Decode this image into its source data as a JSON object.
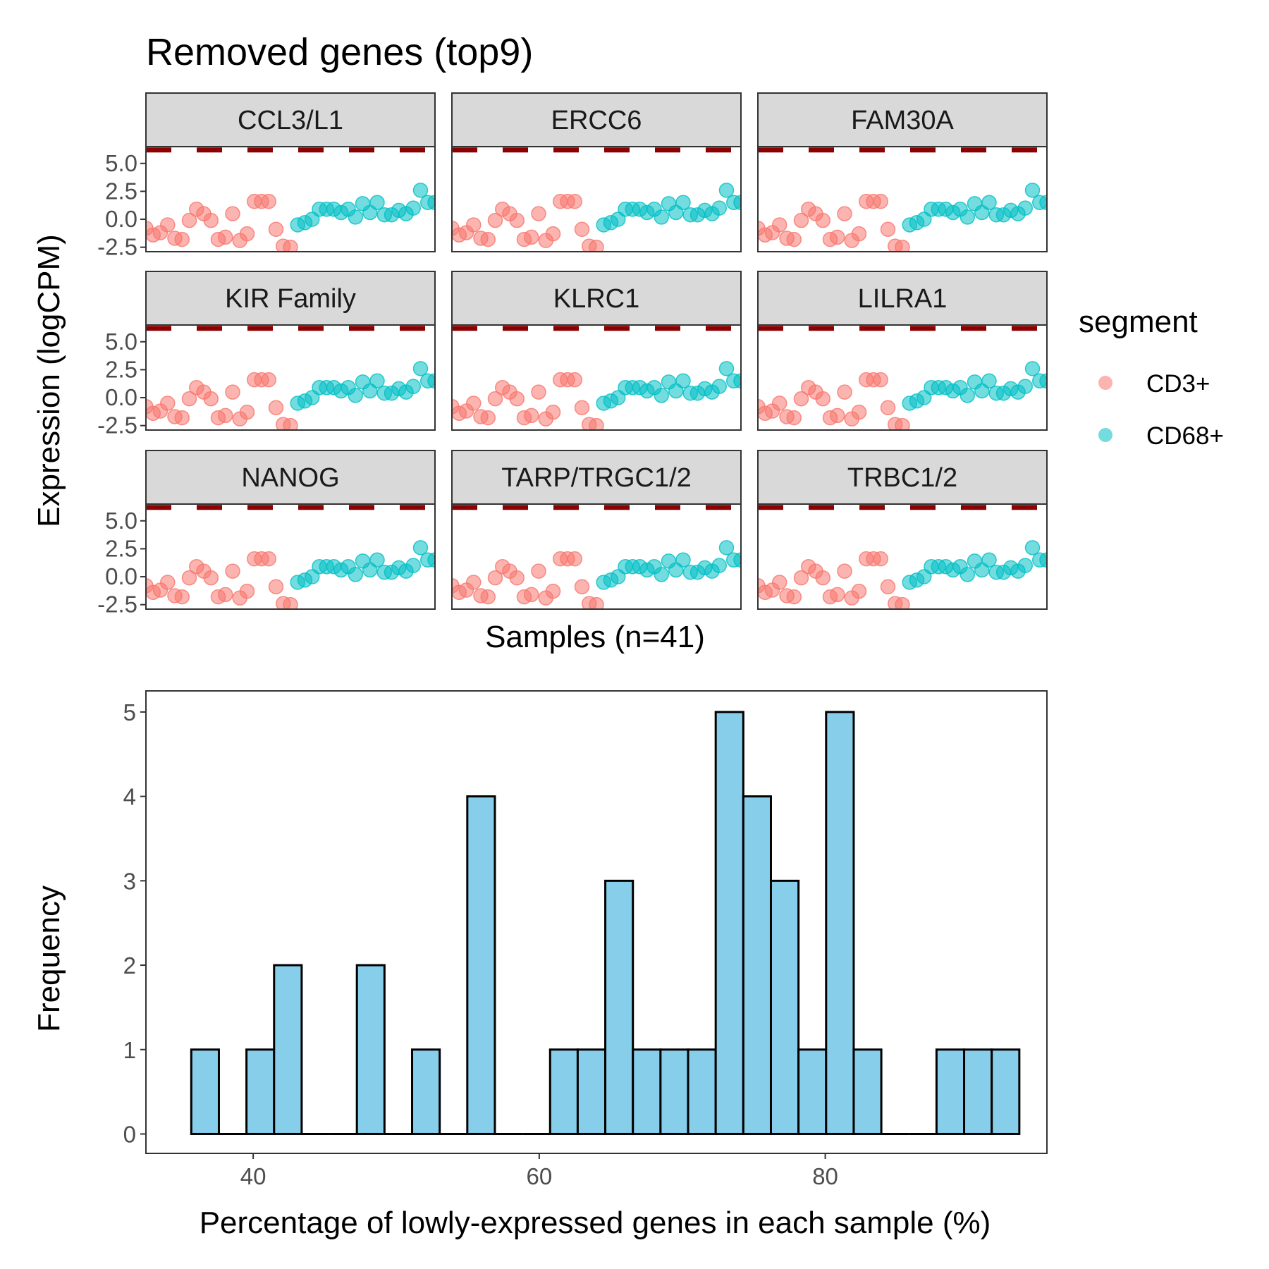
{
  "title": "Removed genes (top9)",
  "colors": {
    "cd3": "#F8766D",
    "cd68": "#00BFC4",
    "threshold": "#8B0000",
    "bar_fill": "#87CEEB",
    "bar_stroke": "#000000",
    "strip_bg": "#D9D9D9"
  },
  "legend": {
    "title": "segment",
    "items": [
      {
        "label": "CD3+",
        "color": "#F8766D"
      },
      {
        "label": "CD68+",
        "color": "#00BFC4"
      }
    ]
  },
  "chart_data": [
    {
      "type": "scatter",
      "facets": [
        "CCL3/L1",
        "ERCC6",
        "FAM30A",
        "KIR Family",
        "KLRC1",
        "LILRA1",
        "NANOG",
        "TARP/TRGC1/2",
        "TRBC1/2"
      ],
      "xlabel": "Samples (n=41)",
      "ylabel": "Expression (logCPM)",
      "ylim": [
        -2.9,
        6.5
      ],
      "y_ticks": [
        "5.0",
        "2.5",
        "0.0",
        "-2.5"
      ],
      "y_tick_values": [
        5.0,
        2.5,
        0.0,
        -2.5
      ],
      "threshold_line": 6.2,
      "threshold_style": "dashed",
      "series": [
        {
          "name": "CD3+",
          "x": [
            1,
            2,
            3,
            4,
            5,
            6,
            7,
            8,
            9,
            10,
            11,
            12,
            13,
            14,
            15,
            16,
            17,
            18,
            19,
            20,
            21
          ],
          "values": [
            -0.8,
            -1.4,
            -1.2,
            -0.5,
            -1.7,
            -1.8,
            -0.1,
            0.9,
            0.5,
            -0.1,
            -1.8,
            -1.6,
            0.5,
            -1.9,
            -1.3,
            1.6,
            1.6,
            1.6,
            -0.9,
            -2.4,
            -2.5
          ]
        },
        {
          "name": "CD68+",
          "x": [
            22,
            23,
            24,
            25,
            26,
            27,
            28,
            29,
            30,
            31,
            32,
            33,
            34,
            35,
            36,
            37,
            38,
            39,
            40,
            41
          ],
          "values": [
            -0.5,
            -0.3,
            0.0,
            0.9,
            0.9,
            0.9,
            0.6,
            0.9,
            0.2,
            1.4,
            0.6,
            1.5,
            0.4,
            0.4,
            0.8,
            0.5,
            1.0,
            2.6,
            1.5,
            1.5
          ]
        }
      ],
      "grid": false
    },
    {
      "type": "bar",
      "subtype": "histogram",
      "xlabel": "Percentage of lowly-expressed genes in each sample (%)",
      "ylabel": "Frequency",
      "xlim": [
        32.5,
        95.5
      ],
      "ylim": [
        -0.23,
        5.25
      ],
      "x_ticks": [
        "40",
        "60",
        "80"
      ],
      "x_tick_values": [
        40,
        60,
        80
      ],
      "y_ticks": [
        "0",
        "1",
        "2",
        "3",
        "4",
        "5"
      ],
      "y_tick_values": [
        0,
        1,
        2,
        3,
        4,
        5
      ],
      "bin_start": 35.67,
      "bin_width": 1.93,
      "values": [
        1,
        0,
        1,
        2,
        0,
        0,
        2,
        0,
        1,
        0,
        4,
        0,
        0,
        1,
        1,
        3,
        1,
        1,
        1,
        5,
        4,
        3,
        1,
        5,
        1,
        0,
        0,
        1,
        1,
        1
      ],
      "grid": false
    }
  ]
}
